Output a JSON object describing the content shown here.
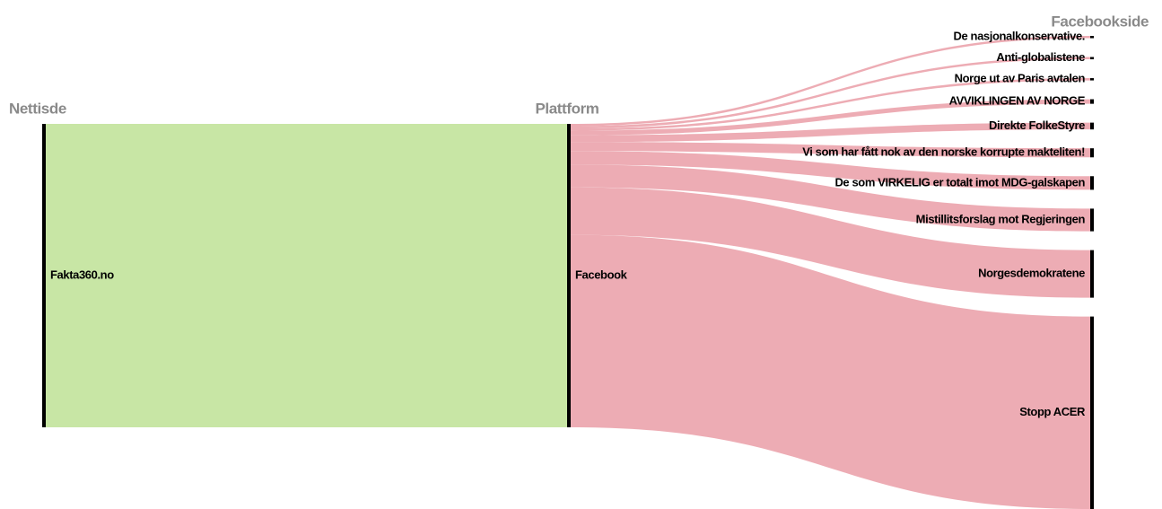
{
  "chart_data": {
    "type": "sankey",
    "columns": [
      "Nettisde",
      "Plattform",
      "Facebookside"
    ],
    "nodes": [
      {
        "name": "Fakta360.no",
        "column": 0
      },
      {
        "name": "Facebook",
        "column": 1
      },
      {
        "name": "De nasjonalkonservative.",
        "column": 2
      },
      {
        "name": "Anti-globalistene",
        "column": 2
      },
      {
        "name": "Norge ut av Paris avtalen",
        "column": 2
      },
      {
        "name": "AVVIKLINGEN AV NORGE",
        "column": 2
      },
      {
        "name": "Direkte FolkeStyre",
        "column": 2
      },
      {
        "name": "Vi som har fått nok av den norske korrupte makteliten!",
        "column": 2
      },
      {
        "name": "De som VIRKELIG er totalt imot MDG-galskapen",
        "column": 2
      },
      {
        "name": "Mistillitsforslag mot Regjeringen",
        "column": 2
      },
      {
        "name": "Norgesdemokratene",
        "column": 2
      },
      {
        "name": "Stopp ACER",
        "column": 2
      }
    ],
    "links": [
      {
        "source": 0,
        "target": 1,
        "value": 134,
        "color": "#c5e5a0"
      },
      {
        "source": 1,
        "target": 2,
        "value": 1,
        "color": "#eca8b0"
      },
      {
        "source": 1,
        "target": 3,
        "value": 1,
        "color": "#eca8b0"
      },
      {
        "source": 1,
        "target": 4,
        "value": 1,
        "color": "#eca8b0"
      },
      {
        "source": 1,
        "target": 5,
        "value": 2,
        "color": "#eca8b0"
      },
      {
        "source": 1,
        "target": 6,
        "value": 3,
        "color": "#eca8b0"
      },
      {
        "source": 1,
        "target": 7,
        "value": 4,
        "color": "#eca8b0"
      },
      {
        "source": 1,
        "target": 8,
        "value": 6,
        "color": "#eca8b0"
      },
      {
        "source": 1,
        "target": 9,
        "value": 10,
        "color": "#eca8b0"
      },
      {
        "source": 1,
        "target": 10,
        "value": 21,
        "color": "#eca8b0"
      },
      {
        "source": 1,
        "target": 11,
        "value": 85,
        "color": "#eca8b0"
      }
    ]
  }
}
